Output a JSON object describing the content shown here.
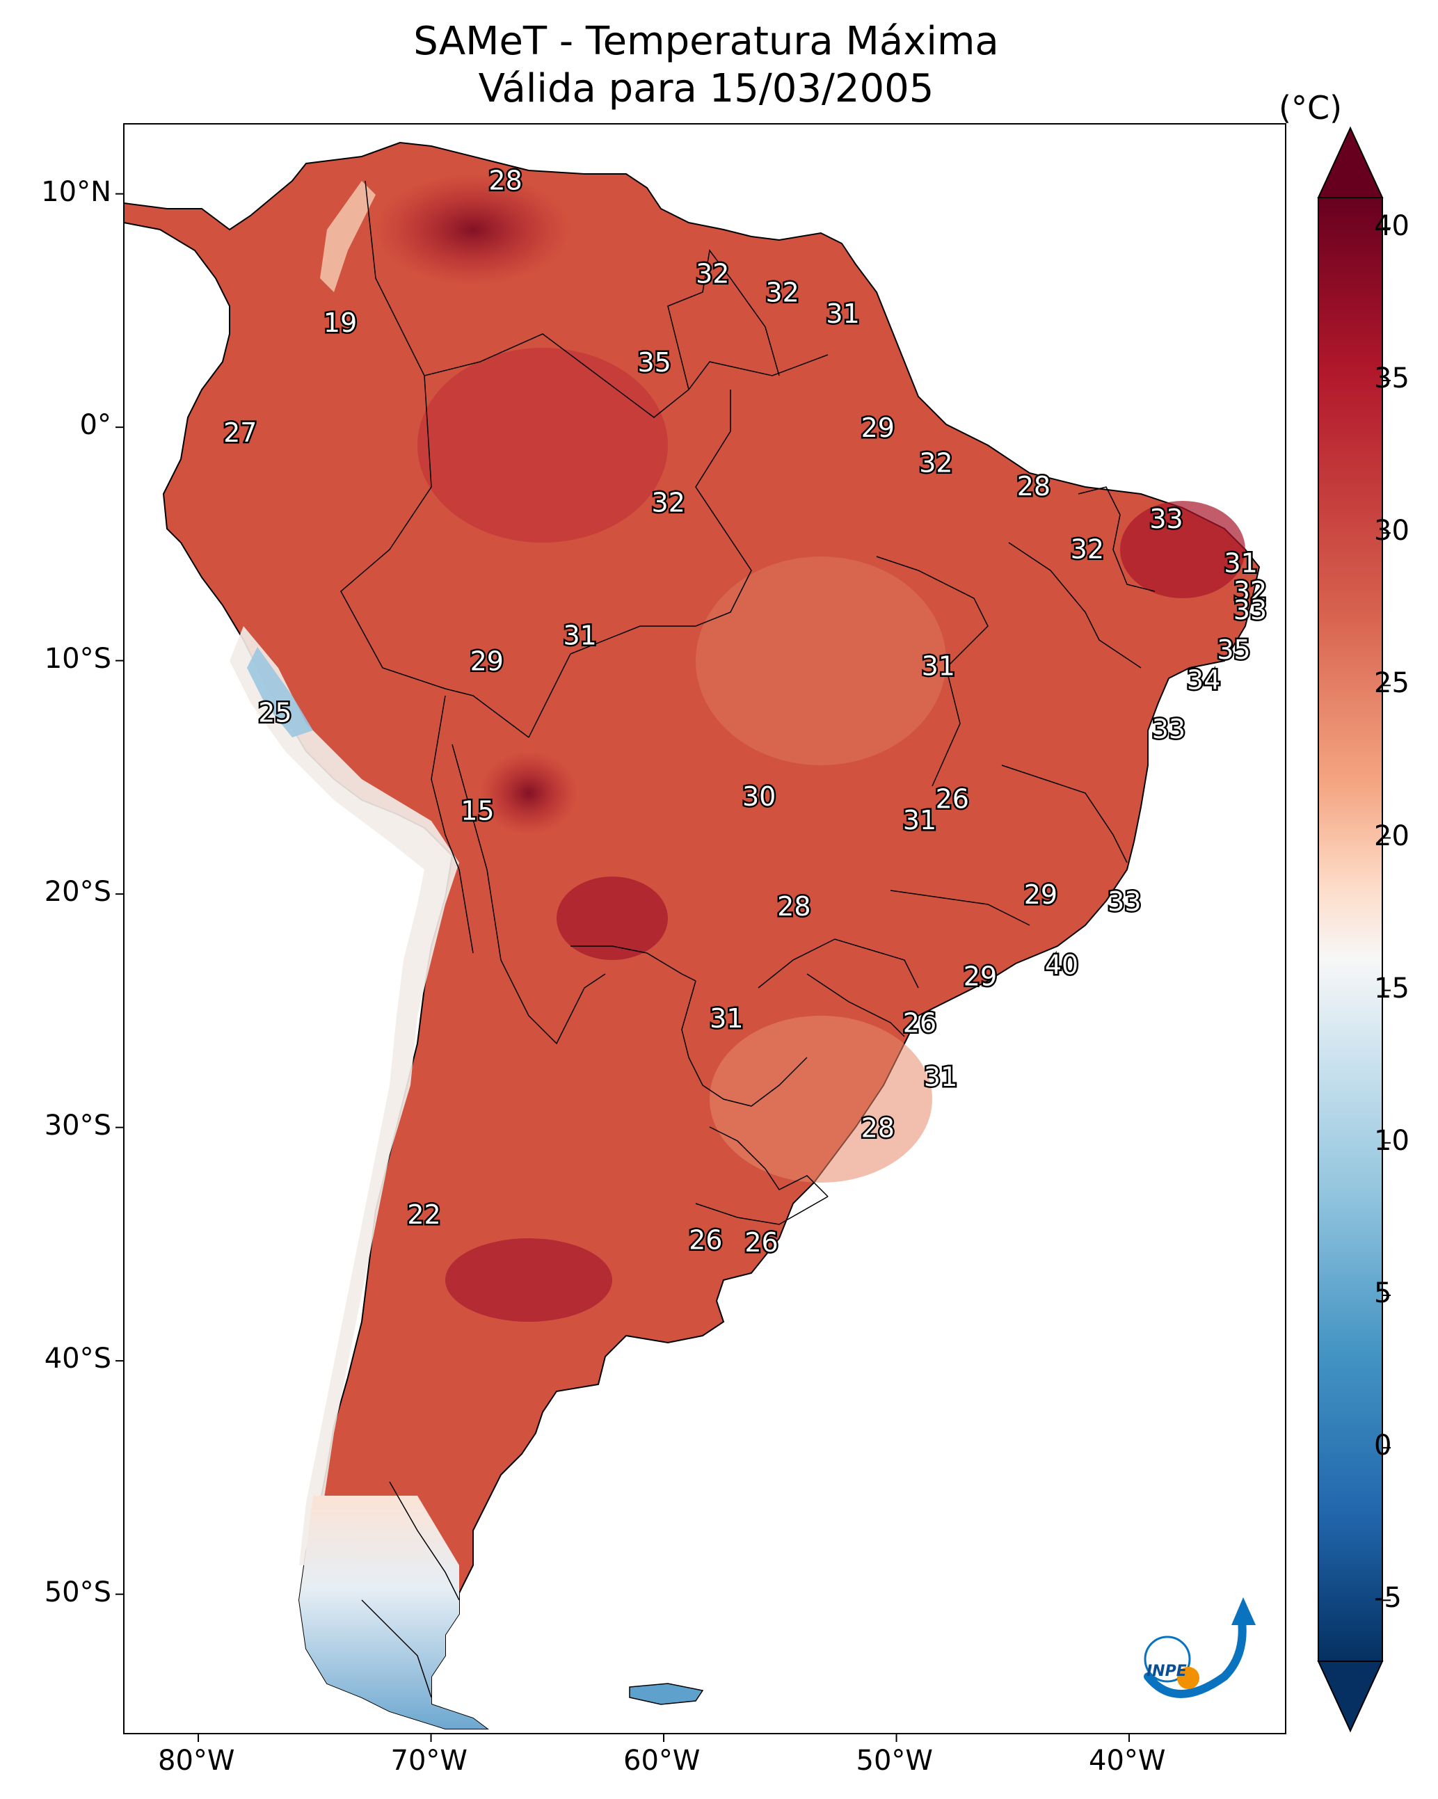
{
  "title": {
    "line1": "SAMeT - Temperatura Máxima",
    "line2": "Válida para 15/03/2005"
  },
  "colorbar": {
    "unit": "(°C)",
    "ticks": [
      "40",
      "35",
      "30",
      "25",
      "20",
      "15",
      "10",
      "5",
      "0",
      "-5"
    ],
    "range": [
      -7,
      41
    ],
    "colors": {
      "hot": "#67001f",
      "warm": "#d6604d",
      "neutral": "#f7f7f7",
      "cool": "#4393c3",
      "cold": "#053061"
    }
  },
  "axes": {
    "lon_labels": [
      "80°W",
      "70°W",
      "60°W",
      "50°W",
      "40°W"
    ],
    "lat_labels": [
      "10°N",
      "0°",
      "10°S",
      "20°S",
      "30°S",
      "40°S",
      "50°S"
    ]
  },
  "map_labels": [
    {
      "text": "28",
      "lon": -66.8,
      "lat": 10.6
    },
    {
      "text": "32",
      "lon": -57.9,
      "lat": 6.6
    },
    {
      "text": "32",
      "lon": -54.9,
      "lat": 5.8
    },
    {
      "text": "31",
      "lon": -52.3,
      "lat": 4.9
    },
    {
      "text": "19",
      "lon": -73.9,
      "lat": 4.5
    },
    {
      "text": "35",
      "lon": -60.4,
      "lat": 2.8
    },
    {
      "text": "29",
      "lon": -50.8,
      "lat": 0.0
    },
    {
      "text": "27",
      "lon": -78.2,
      "lat": -0.2
    },
    {
      "text": "32",
      "lon": -48.3,
      "lat": -1.5
    },
    {
      "text": "28",
      "lon": -44.1,
      "lat": -2.5
    },
    {
      "text": "32",
      "lon": -59.8,
      "lat": -3.2
    },
    {
      "text": "33",
      "lon": -38.4,
      "lat": -3.9
    },
    {
      "text": "32",
      "lon": -41.8,
      "lat": -5.2
    },
    {
      "text": "31",
      "lon": -35.2,
      "lat": -5.8
    },
    {
      "text": "32",
      "lon": -34.8,
      "lat": -7.0
    },
    {
      "text": "33",
      "lon": -34.8,
      "lat": -7.8
    },
    {
      "text": "31",
      "lon": -63.6,
      "lat": -8.9
    },
    {
      "text": "35",
      "lon": -35.5,
      "lat": -9.5
    },
    {
      "text": "29",
      "lon": -67.6,
      "lat": -10.0
    },
    {
      "text": "31",
      "lon": -48.2,
      "lat": -10.2
    },
    {
      "text": "34",
      "lon": -36.8,
      "lat": -10.8
    },
    {
      "text": "25",
      "lon": -76.7,
      "lat": -12.2
    },
    {
      "text": "33",
      "lon": -38.3,
      "lat": -12.9
    },
    {
      "text": "30",
      "lon": -55.9,
      "lat": -15.8
    },
    {
      "text": "26",
      "lon": -47.6,
      "lat": -15.9
    },
    {
      "text": "15",
      "lon": -68.0,
      "lat": -16.4
    },
    {
      "text": "31",
      "lon": -49.0,
      "lat": -16.8
    },
    {
      "text": "29",
      "lon": -43.8,
      "lat": -20.0
    },
    {
      "text": "33",
      "lon": -40.2,
      "lat": -20.3
    },
    {
      "text": "28",
      "lon": -54.4,
      "lat": -20.5
    },
    {
      "text": "40",
      "lon": -42.9,
      "lat": -23.0
    },
    {
      "text": "29",
      "lon": -46.4,
      "lat": -23.5
    },
    {
      "text": "31",
      "lon": -57.3,
      "lat": -25.3
    },
    {
      "text": "26",
      "lon": -49.0,
      "lat": -25.5
    },
    {
      "text": "31",
      "lon": -48.1,
      "lat": -27.8
    },
    {
      "text": "28",
      "lon": -50.8,
      "lat": -30.0
    },
    {
      "text": "22",
      "lon": -70.3,
      "lat": -33.7
    },
    {
      "text": "26",
      "lon": -58.2,
      "lat": -34.8
    },
    {
      "text": "26",
      "lon": -55.8,
      "lat": -34.9
    }
  ],
  "logo": {
    "text": "INPE"
  }
}
